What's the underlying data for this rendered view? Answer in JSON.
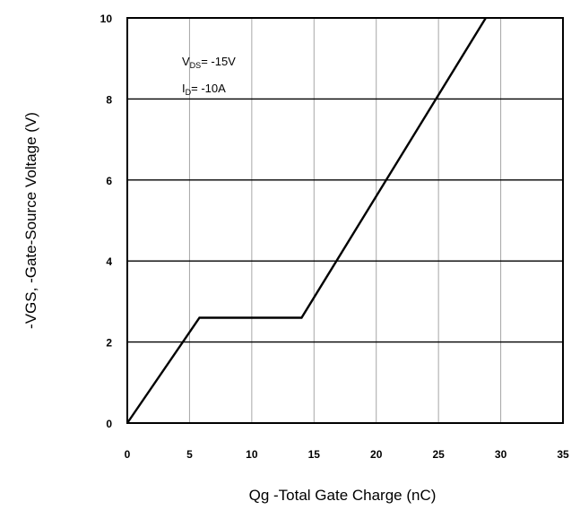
{
  "chart_data": {
    "type": "line",
    "xlabel": "Qg -Total Gate Charge (nC)",
    "ylabel": "-VGS, -Gate-Source Voltage (V)",
    "xlim": [
      0,
      35
    ],
    "ylim": [
      0,
      10
    ],
    "x_ticks": [
      "0",
      "5",
      "10",
      "15",
      "20",
      "25",
      "30",
      "35"
    ],
    "y_ticks": [
      "0",
      "2",
      "4",
      "6",
      "8",
      "10"
    ],
    "grid": true,
    "series": [
      {
        "x": [
          0,
          5.8,
          14,
          28.8
        ],
        "y": [
          0,
          2.6,
          2.6,
          10
        ]
      }
    ],
    "annotations": {
      "vds": {
        "main": "V",
        "sub": "DS",
        "rest": "= -15V"
      },
      "id": {
        "main": "I",
        "sub": "D",
        "rest": "= -10A"
      }
    }
  }
}
